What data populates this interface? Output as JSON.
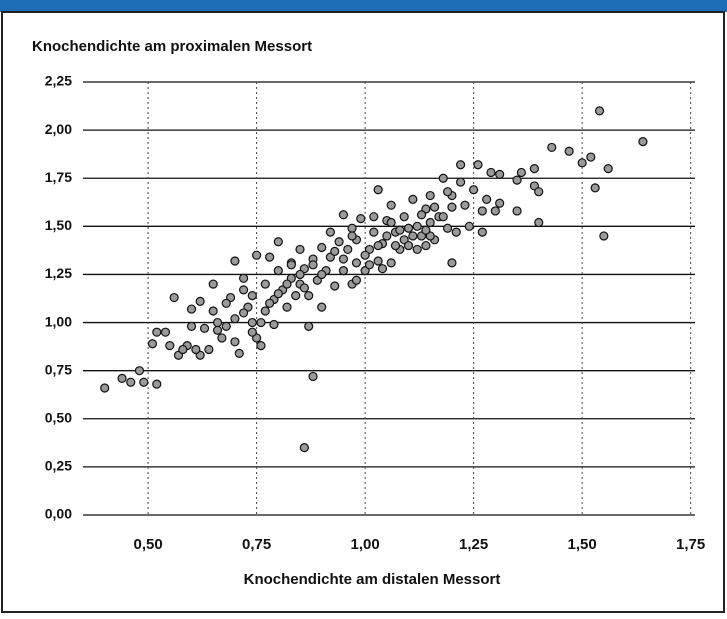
{
  "chart_data": {
    "type": "scatter",
    "title": "Knochendichte am proximalen Messort",
    "x_label": "Knochendichte am distalen Messort",
    "color": "#9a9a9a",
    "xlim": [
      0.35,
      1.76
    ],
    "ylim": [
      0,
      2.25
    ],
    "xticks": [
      {
        "value": 0.5,
        "label": "0,50"
      },
      {
        "value": 0.75,
        "label": "0,75"
      },
      {
        "value": 1.0,
        "label": "1,00"
      },
      {
        "value": 1.25,
        "label": "1,25"
      },
      {
        "value": 1.5,
        "label": "1,50"
      },
      {
        "value": 1.75,
        "label": "1,75"
      }
    ],
    "yticks": [
      {
        "value": 0,
        "label": "0,00"
      },
      {
        "value": 0.25,
        "label": "0,25"
      },
      {
        "value": 0.5,
        "label": "0,50"
      },
      {
        "value": 0.75,
        "label": "0,75"
      },
      {
        "value": 1.0,
        "label": "1,00"
      },
      {
        "value": 1.25,
        "label": "1,25"
      },
      {
        "value": 1.5,
        "label": "1,50"
      },
      {
        "value": 1.75,
        "label": "1,75"
      },
      {
        "value": 2.0,
        "label": "2,00"
      },
      {
        "value": 2.25,
        "label": "2,25"
      }
    ],
    "grid": true,
    "x": [
      0.4,
      0.44,
      0.46,
      0.48,
      0.49,
      0.52,
      0.51,
      0.52,
      0.54,
      0.56,
      0.55,
      0.57,
      0.59,
      0.6,
      0.6,
      0.62,
      0.62,
      0.64,
      0.65,
      0.65,
      0.66,
      0.68,
      0.67,
      0.69,
      0.7,
      0.7,
      0.71,
      0.72,
      0.72,
      0.73,
      0.74,
      0.74,
      0.75,
      0.75,
      0.76,
      0.77,
      0.77,
      0.78,
      0.79,
      0.79,
      0.8,
      0.8,
      0.81,
      0.82,
      0.83,
      0.83,
      0.84,
      0.85,
      0.85,
      0.86,
      0.86,
      0.87,
      0.87,
      0.88,
      0.88,
      0.89,
      0.9,
      0.9,
      0.91,
      0.92,
      0.92,
      0.93,
      0.94,
      0.95,
      0.95,
      0.96,
      0.97,
      0.97,
      0.98,
      0.98,
      0.99,
      1.0,
      1.01,
      1.02,
      1.03,
      1.03,
      1.04,
      1.05,
      1.06,
      1.06,
      1.07,
      1.08,
      1.09,
      1.09,
      1.1,
      1.11,
      1.12,
      1.13,
      1.14,
      1.14,
      1.15,
      1.15,
      1.16,
      1.17,
      1.18,
      1.19,
      1.2,
      1.2,
      1.21,
      1.22,
      1.22,
      1.23,
      1.24,
      1.25,
      1.26,
      1.27,
      1.27,
      1.28,
      1.29,
      1.3,
      1.31,
      1.31,
      1.35,
      1.35,
      1.36,
      1.39,
      1.39,
      1.4,
      1.4,
      1.43,
      1.47,
      1.5,
      1.52,
      1.53,
      1.54,
      1.55,
      1.56,
      1.64,
      1.05,
      1.1,
      1.12,
      1.08,
      1.0,
      0.95,
      0.9,
      0.85,
      0.82,
      0.8,
      0.78,
      0.76,
      0.74,
      0.72,
      0.68,
      0.66,
      0.63,
      0.61,
      0.58,
      0.7,
      1.02,
      1.06,
      1.13,
      1.15,
      1.18,
      1.2,
      1.03,
      0.97,
      0.93,
      0.88,
      0.86,
      0.83,
      0.98,
      1.01,
      1.04,
      1.07,
      1.11,
      1.14,
      1.16,
      1.19
    ],
    "values": [
      0.66,
      0.71,
      0.69,
      0.75,
      0.69,
      0.68,
      0.89,
      0.95,
      0.95,
      1.13,
      0.88,
      0.83,
      0.88,
      1.07,
      0.98,
      1.11,
      0.83,
      0.86,
      1.06,
      1.2,
      0.96,
      0.98,
      0.92,
      1.13,
      1.32,
      1.02,
      0.84,
      1.17,
      1.23,
      1.08,
      1.0,
      1.14,
      1.35,
      0.92,
      0.88,
      1.06,
      1.2,
      1.34,
      1.12,
      0.99,
      1.27,
      1.42,
      1.17,
      1.08,
      1.31,
      1.23,
      1.14,
      1.38,
      1.2,
      1.28,
      0.35,
      1.14,
      0.98,
      1.33,
      0.72,
      1.22,
      1.08,
      1.39,
      1.27,
      1.47,
      1.34,
      1.19,
      1.42,
      1.27,
      1.56,
      1.38,
      1.2,
      1.49,
      1.31,
      1.43,
      1.54,
      1.27,
      1.38,
      1.47,
      1.32,
      1.69,
      1.41,
      1.53,
      1.31,
      1.61,
      1.47,
      1.38,
      1.55,
      1.43,
      1.49,
      1.64,
      1.38,
      1.45,
      1.59,
      1.4,
      1.52,
      1.66,
      1.43,
      1.55,
      1.75,
      1.49,
      1.31,
      1.66,
      1.47,
      1.73,
      1.82,
      1.61,
      1.5,
      1.69,
      1.82,
      1.58,
      1.47,
      1.64,
      1.78,
      1.58,
      1.62,
      1.77,
      1.58,
      1.74,
      1.78,
      1.8,
      1.71,
      1.52,
      1.68,
      1.91,
      1.89,
      1.83,
      1.86,
      1.7,
      2.1,
      1.45,
      1.8,
      1.94,
      1.45,
      1.4,
      1.5,
      1.48,
      1.35,
      1.33,
      1.25,
      1.25,
      1.2,
      1.15,
      1.1,
      1.0,
      0.95,
      1.05,
      1.1,
      1.0,
      0.97,
      0.86,
      0.86,
      0.9,
      1.55,
      1.52,
      1.56,
      1.45,
      1.55,
      1.6,
      1.4,
      1.45,
      1.37,
      1.3,
      1.18,
      1.3,
      1.22,
      1.3,
      1.28,
      1.4,
      1.45,
      1.48,
      1.6,
      1.68
    ]
  }
}
